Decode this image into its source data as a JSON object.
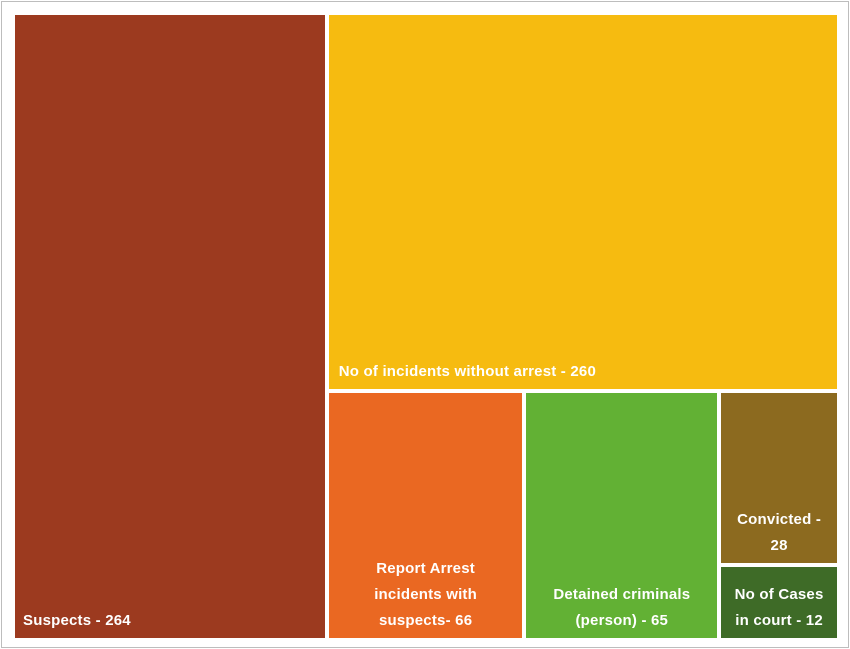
{
  "chart_data": {
    "type": "treemap",
    "title": "",
    "items": [
      {
        "label": "Suspects - 264",
        "name": "Suspects",
        "value": 264,
        "color": "#9c3a1f"
      },
      {
        "label": "No of incidents without arrest - 260",
        "name": "No of incidents without arrest",
        "value": 260,
        "color": "#f6bb10"
      },
      {
        "label": "Report Arrest\nincidents with\nsuspects- 66",
        "name": "Report Arrest incidents with suspects",
        "value": 66,
        "color": "#ea6822"
      },
      {
        "label": "Detained criminals\n(person) - 65",
        "name": "Detained criminals (person)",
        "value": 65,
        "color": "#62b134"
      },
      {
        "label": "Convicted -\n28",
        "name": "Convicted",
        "value": 28,
        "color": "#8c6a1f"
      },
      {
        "label": "No of Cases\nin court - 12",
        "name": "No of Cases in court",
        "value": 12,
        "color": "#3e6b27"
      }
    ]
  }
}
